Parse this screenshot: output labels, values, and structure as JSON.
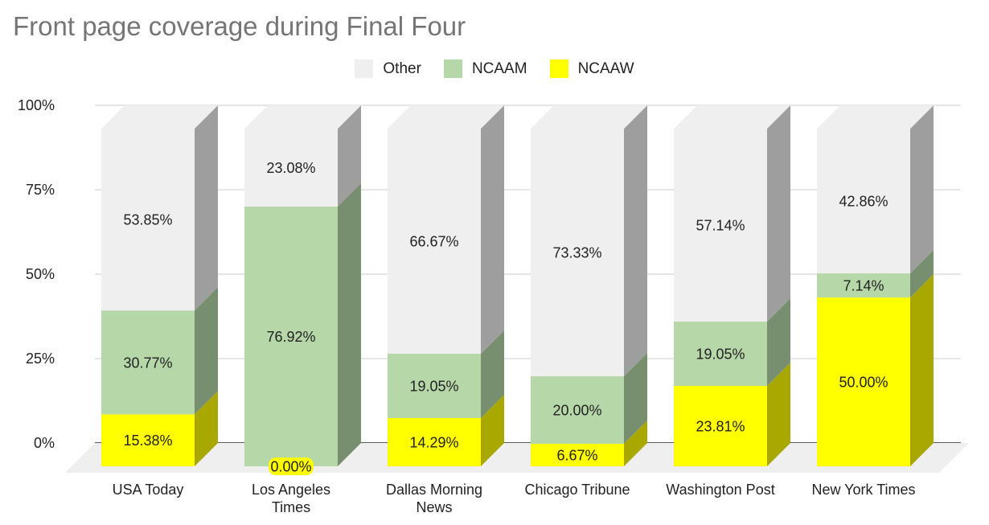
{
  "chart_data": {
    "type": "bar",
    "stacked": true,
    "percent": true,
    "three_d": true,
    "title": "Front page coverage during Final Four",
    "categories": [
      "USA Today",
      "Los Angeles Times",
      "Dallas Morning News",
      "Chicago Tribune",
      "Washington Post",
      "New York Times"
    ],
    "category_lines": [
      [
        "USA Today"
      ],
      [
        "Los Angeles",
        "Times"
      ],
      [
        "Dallas Morning",
        "News"
      ],
      [
        "Chicago Tribune"
      ],
      [
        "Washington Post"
      ],
      [
        "New York Times"
      ]
    ],
    "series": [
      {
        "name": "NCAAW",
        "color": "#ffff00",
        "side_color": "#a8a800",
        "values": [
          15.38,
          0.0,
          14.29,
          6.67,
          23.81,
          50.0
        ],
        "labels": [
          "15.38%",
          "0.00%",
          "14.29%",
          "6.67%",
          "23.81%",
          "50.00%"
        ]
      },
      {
        "name": "NCAAM",
        "color": "#b6d7a8",
        "side_color": "#788f6f",
        "values": [
          30.77,
          76.92,
          19.05,
          20.0,
          19.05,
          7.14
        ],
        "labels": [
          "30.77%",
          "76.92%",
          "19.05%",
          "20.00%",
          "19.05%",
          "7.14%"
        ]
      },
      {
        "name": "Other",
        "color": "#efefef",
        "side_color": "#9e9e9e",
        "values": [
          53.85,
          23.08,
          66.67,
          73.33,
          57.14,
          42.86
        ],
        "labels": [
          "53.85%",
          "23.08%",
          "66.67%",
          "73.33%",
          "57.14%",
          "42.86%"
        ]
      }
    ],
    "legend_order": [
      "Other",
      "NCAAM",
      "NCAAW"
    ],
    "legend_position": "top",
    "y_ticks": [
      "0%",
      "25%",
      "50%",
      "75%",
      "100%"
    ],
    "ylim": [
      0,
      100
    ],
    "grid": true,
    "floor_color": "#efefef"
  }
}
